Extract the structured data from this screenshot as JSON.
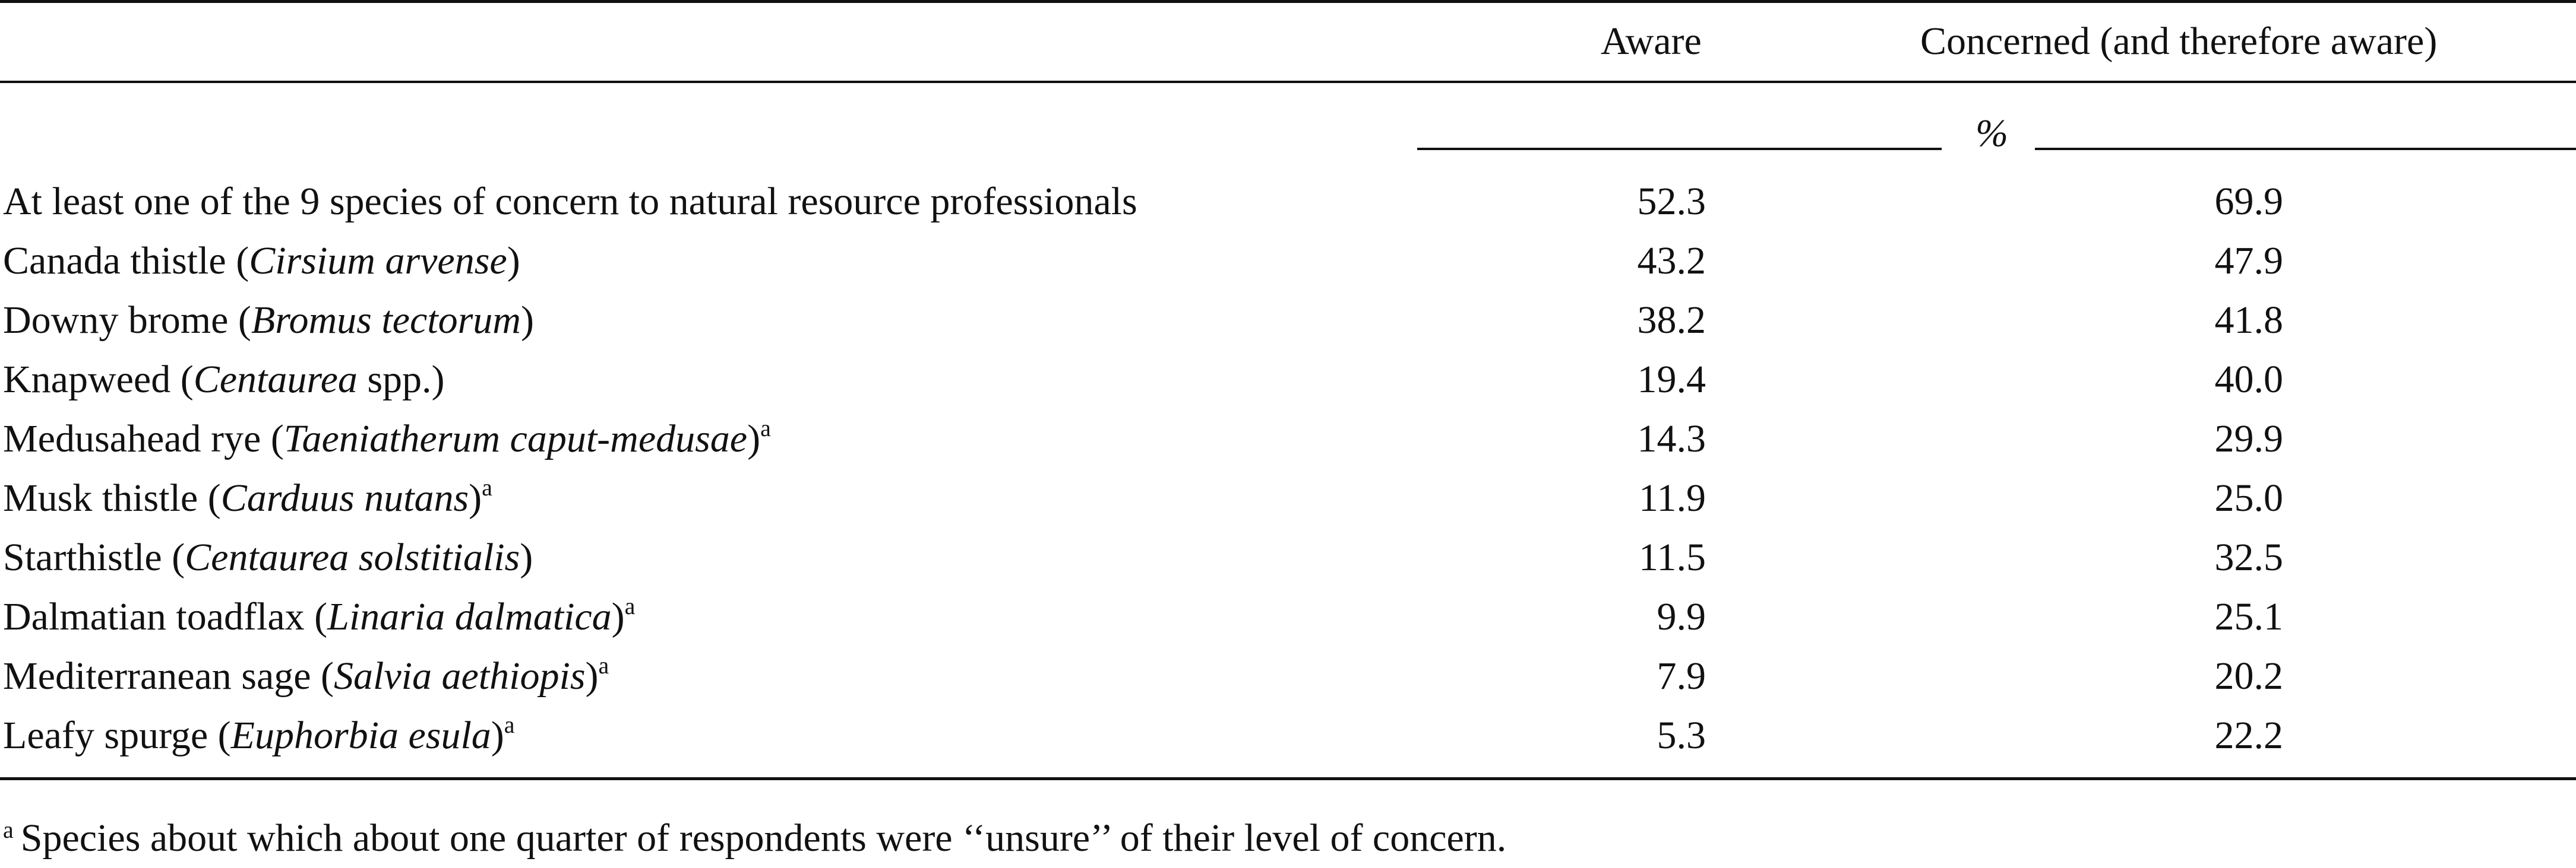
{
  "table": {
    "headers": {
      "aware": "Aware",
      "concerned": "Concerned (and therefore aware)",
      "unit": "%"
    },
    "rows": [
      {
        "label": "At least one of the 9 species of concern to natural resource professionals",
        "species": "",
        "suffix": "",
        "footnote": "",
        "aware": "52.3",
        "concerned": "69.9"
      },
      {
        "label": "Canada thistle (",
        "species": "Cirsium arvense",
        "suffix": ")",
        "footnote": "",
        "aware": "43.2",
        "concerned": "47.9"
      },
      {
        "label": "Downy brome (",
        "species": "Bromus tectorum",
        "suffix": ")",
        "footnote": "",
        "aware": "38.2",
        "concerned": "41.8"
      },
      {
        "label": "Knapweed (",
        "species": "Centaurea",
        "suffix": " spp.)",
        "footnote": "",
        "aware": "19.4",
        "concerned": "40.0"
      },
      {
        "label": "Medusahead rye (",
        "species": "Taeniatherum caput-medusae",
        "suffix": ")",
        "footnote": "a",
        "aware": "14.3",
        "concerned": "29.9"
      },
      {
        "label": "Musk thistle (",
        "species": "Carduus nutans",
        "suffix": ")",
        "footnote": "a",
        "aware": "11.9",
        "concerned": "25.0"
      },
      {
        "label": "Starthistle (",
        "species": "Centaurea solstitialis",
        "suffix": ")",
        "footnote": "",
        "aware": "11.5",
        "concerned": "32.5"
      },
      {
        "label": "Dalmatian toadflax (",
        "species": "Linaria dalmatica",
        "suffix": ")",
        "footnote": "a",
        "aware": "9.9",
        "concerned": "25.1"
      },
      {
        "label": "Mediterranean sage (",
        "species": "Salvia aethiopis",
        "suffix": ")",
        "footnote": "a",
        "aware": "7.9",
        "concerned": "20.2"
      },
      {
        "label": "Leafy spurge (",
        "species": "Euphorbia esula",
        "suffix": ")",
        "footnote": "a",
        "aware": "5.3",
        "concerned": "22.2"
      }
    ],
    "footnote": {
      "marker": "a",
      "text": "Species about which about one quarter of respondents were ‘‘unsure’’ of their level of concern."
    }
  }
}
